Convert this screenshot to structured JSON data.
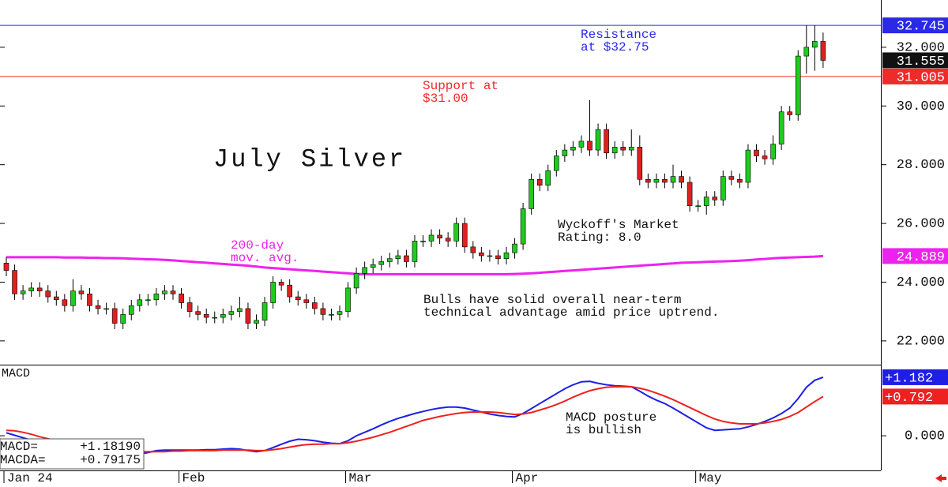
{
  "chart_data": [
    {
      "type": "candlestick",
      "title": "July Silver",
      "categories": [
        "Jan 24",
        null,
        null,
        null,
        null,
        null,
        null,
        null,
        null,
        null,
        null,
        null,
        null,
        null,
        null,
        null,
        null,
        null,
        null,
        null,
        null,
        "Feb",
        null,
        null,
        null,
        null,
        null,
        null,
        null,
        null,
        null,
        null,
        null,
        null,
        null,
        null,
        null,
        null,
        null,
        null,
        null,
        "Mar",
        null,
        null,
        null,
        null,
        null,
        null,
        null,
        null,
        null,
        null,
        null,
        null,
        null,
        null,
        null,
        null,
        null,
        null,
        null,
        "Apr",
        null,
        null,
        null,
        null,
        null,
        null,
        null,
        null,
        null,
        null,
        null,
        null,
        null,
        null,
        null,
        null,
        null,
        null,
        null,
        null,
        null,
        "May",
        null,
        null,
        null,
        null,
        null,
        null,
        null,
        null,
        null,
        null,
        null,
        null,
        null,
        null,
        null
      ],
      "open": [
        24.65,
        24.4,
        23.6,
        23.7,
        23.8,
        23.7,
        23.5,
        23.4,
        23.2,
        23.7,
        23.6,
        23.2,
        23.1,
        23.1,
        22.6,
        22.9,
        23.2,
        23.4,
        23.4,
        23.6,
        23.7,
        23.6,
        23.3,
        23.0,
        22.9,
        22.8,
        22.8,
        22.9,
        23.0,
        23.1,
        22.6,
        22.7,
        23.3,
        24.0,
        23.9,
        23.5,
        23.4,
        23.3,
        23.1,
        22.9,
        22.9,
        23.0,
        23.8,
        24.3,
        24.5,
        24.6,
        24.7,
        24.8,
        24.9,
        24.7,
        25.4,
        25.4,
        25.6,
        25.5,
        25.4,
        26.0,
        25.2,
        25.0,
        24.9,
        24.9,
        24.8,
        25.0,
        25.3,
        26.5,
        27.5,
        27.3,
        27.8,
        28.3,
        28.5,
        28.6,
        28.8,
        28.5,
        29.2,
        28.4,
        28.6,
        28.5,
        28.6,
        27.5,
        27.4,
        27.5,
        27.4,
        27.6,
        27.4,
        26.6,
        26.6,
        26.9,
        26.8,
        27.6,
        27.5,
        27.4,
        28.5,
        28.3,
        28.2,
        28.7,
        29.8,
        29.7,
        31.7,
        32.0,
        32.2
      ],
      "high": [
        24.85,
        24.6,
        23.9,
        24.0,
        24.0,
        23.9,
        23.7,
        23.6,
        24.1,
        23.9,
        23.8,
        23.4,
        23.3,
        23.3,
        23.1,
        23.4,
        23.6,
        23.6,
        23.8,
        23.9,
        23.9,
        23.8,
        23.5,
        23.2,
        23.1,
        23.0,
        23.1,
        23.2,
        23.5,
        23.3,
        22.9,
        23.5,
        24.2,
        24.1,
        24.1,
        23.7,
        23.6,
        23.5,
        23.3,
        23.1,
        23.2,
        24.0,
        24.5,
        24.7,
        24.8,
        24.9,
        25.0,
        25.1,
        25.1,
        25.6,
        25.6,
        25.8,
        25.8,
        25.7,
        26.2,
        26.2,
        25.4,
        25.2,
        25.1,
        25.1,
        25.2,
        25.5,
        26.7,
        27.7,
        27.7,
        28.0,
        28.5,
        28.7,
        28.8,
        29.0,
        30.2,
        29.4,
        29.4,
        28.8,
        28.8,
        29.2,
        29.0,
        27.7,
        27.7,
        27.7,
        28.0,
        27.8,
        27.6,
        26.8,
        27.1,
        27.1,
        27.8,
        27.8,
        27.7,
        28.7,
        28.7,
        28.5,
        29.0,
        30.0,
        30.0,
        31.9,
        32.75,
        32.75,
        32.5
      ],
      "low": [
        24.2,
        23.4,
        23.4,
        23.5,
        23.5,
        23.3,
        23.2,
        23.0,
        23.0,
        23.4,
        23.0,
        22.9,
        22.9,
        22.4,
        22.4,
        22.7,
        23.0,
        23.2,
        23.2,
        23.4,
        23.4,
        23.1,
        22.8,
        22.7,
        22.6,
        22.6,
        22.6,
        22.7,
        22.8,
        22.4,
        22.4,
        22.5,
        23.1,
        23.7,
        23.3,
        23.2,
        23.1,
        22.9,
        22.7,
        22.7,
        22.7,
        22.8,
        23.6,
        24.1,
        24.3,
        24.4,
        24.5,
        24.6,
        24.5,
        24.5,
        25.2,
        25.2,
        25.3,
        25.2,
        25.2,
        25.0,
        24.8,
        24.7,
        24.7,
        24.6,
        24.6,
        24.8,
        25.1,
        26.3,
        27.1,
        27.1,
        27.6,
        28.1,
        28.3,
        28.4,
        28.3,
        28.3,
        28.2,
        28.2,
        28.3,
        28.3,
        27.3,
        27.2,
        27.2,
        27.2,
        27.2,
        27.2,
        26.4,
        26.4,
        26.3,
        26.6,
        26.6,
        27.3,
        27.2,
        27.2,
        28.1,
        28.0,
        28.0,
        28.5,
        29.5,
        29.5,
        31.1,
        31.2,
        31.3
      ],
      "close": [
        24.4,
        23.6,
        23.7,
        23.8,
        23.7,
        23.5,
        23.4,
        23.2,
        23.7,
        23.6,
        23.2,
        23.1,
        23.1,
        22.6,
        22.9,
        23.2,
        23.4,
        23.4,
        23.6,
        23.7,
        23.6,
        23.3,
        23.0,
        22.9,
        22.8,
        22.8,
        22.9,
        23.0,
        23.1,
        22.6,
        22.7,
        23.3,
        24.0,
        23.9,
        23.5,
        23.4,
        23.3,
        23.1,
        22.9,
        22.9,
        23.0,
        23.8,
        24.3,
        24.5,
        24.6,
        24.7,
        24.8,
        24.9,
        24.7,
        25.4,
        25.4,
        25.6,
        25.5,
        25.4,
        26.0,
        25.2,
        25.0,
        24.9,
        24.9,
        24.8,
        25.0,
        25.3,
        26.5,
        27.5,
        27.3,
        27.8,
        28.3,
        28.5,
        28.6,
        28.8,
        28.5,
        29.2,
        28.4,
        28.6,
        28.5,
        28.6,
        27.5,
        27.4,
        27.5,
        27.4,
        27.6,
        27.4,
        26.6,
        26.6,
        26.9,
        26.8,
        27.6,
        27.5,
        27.4,
        28.5,
        28.3,
        28.2,
        28.7,
        29.8,
        29.7,
        31.7,
        32.0,
        32.2,
        31.555
      ],
      "up_color": "#1ecb1e",
      "down_color": "#e02020",
      "overlays": [
        {
          "color": "#ee22ee",
          "values": [
            24.85,
            24.85,
            24.85,
            24.85,
            24.85,
            24.85,
            24.85,
            24.84,
            24.84,
            24.84,
            24.83,
            24.83,
            24.82,
            24.82,
            24.81,
            24.8,
            24.79,
            24.78,
            24.77,
            24.76,
            24.74,
            24.72,
            24.7,
            24.68,
            24.66,
            24.64,
            24.62,
            24.6,
            24.58,
            24.56,
            24.53,
            24.5,
            24.48,
            24.46,
            24.44,
            24.42,
            24.4,
            24.38,
            24.36,
            24.34,
            24.32,
            24.3,
            24.28,
            24.27,
            24.27,
            24.27,
            24.27,
            24.27,
            24.27,
            24.27,
            24.27,
            24.27,
            24.27,
            24.27,
            24.27,
            24.27,
            24.27,
            24.27,
            24.27,
            24.27,
            24.27,
            24.28,
            24.29,
            24.3,
            24.32,
            24.34,
            24.36,
            24.38,
            24.4,
            24.42,
            24.44,
            24.46,
            24.48,
            24.5,
            24.52,
            24.54,
            24.56,
            24.58,
            24.6,
            24.62,
            24.64,
            24.66,
            24.67,
            24.68,
            24.69,
            24.7,
            24.71,
            24.72,
            24.73,
            24.75,
            24.77,
            24.79,
            24.81,
            24.83,
            24.84,
            24.85,
            24.86,
            24.87,
            24.889
          ]
        }
      ],
      "markers": [
        {
          "value": 32.745,
          "color": "#2a2ae6",
          "line": true
        },
        {
          "value": 31.555,
          "color": "#111111",
          "line": false
        },
        {
          "value": 31.005,
          "color": "#ee2a2a",
          "line": true
        },
        {
          "value": 24.889,
          "color": "#ee22ee",
          "line": false
        }
      ],
      "annotations": [
        {
          "text": [
            "Resistance",
            "at $32.75"
          ],
          "color": "#2a2ae6"
        },
        {
          "text": [
            "Support at",
            "$31.00"
          ],
          "color": "#ee2a2a"
        },
        {
          "text": [
            "200-day",
            "mov. avg."
          ],
          "color": "#ee22ee"
        },
        {
          "text": [
            "Wyckoff's Market",
            "Rating: 8.0"
          ],
          "color": "#111111"
        },
        {
          "text": [
            "Bulls have solid overall near-term",
            "technical advantage amid price uptrend."
          ],
          "color": "#111111"
        }
      ],
      "ylim": [
        21.19,
        33.61
      ],
      "yticks": [
        {
          "value": 22,
          "label": "22.000"
        },
        {
          "value": 24,
          "label": "24.000"
        },
        {
          "value": 26,
          "label": "26.000"
        },
        {
          "value": 28,
          "label": "28.000"
        },
        {
          "value": 30,
          "label": "30.000"
        },
        {
          "value": 32,
          "label": "32.000"
        }
      ]
    },
    {
      "type": "line",
      "title": "MACD",
      "series": [
        {
          "name": "MACD=",
          "color": "#1e1ee6",
          "values": [
            0.06,
            0.01,
            -0.04,
            -0.09,
            -0.14,
            -0.2,
            -0.24,
            -0.28,
            -0.32,
            -0.37,
            -0.38,
            -0.39,
            -0.4,
            -0.42,
            -0.42,
            -0.4,
            -0.37,
            -0.34,
            -0.3,
            -0.29,
            -0.29,
            -0.29,
            -0.29,
            -0.29,
            -0.28,
            -0.28,
            -0.27,
            -0.26,
            -0.27,
            -0.3,
            -0.32,
            -0.3,
            -0.24,
            -0.17,
            -0.11,
            -0.07,
            -0.08,
            -0.1,
            -0.13,
            -0.15,
            -0.16,
            -0.1,
            0.0,
            0.07,
            0.14,
            0.22,
            0.29,
            0.35,
            0.4,
            0.45,
            0.49,
            0.53,
            0.56,
            0.58,
            0.58,
            0.56,
            0.52,
            0.48,
            0.44,
            0.41,
            0.39,
            0.38,
            0.45,
            0.55,
            0.65,
            0.75,
            0.85,
            0.95,
            1.03,
            1.09,
            1.1,
            1.06,
            1.03,
            1.01,
            1.0,
            0.99,
            0.9,
            0.8,
            0.72,
            0.65,
            0.56,
            0.46,
            0.36,
            0.26,
            0.16,
            0.11,
            0.12,
            0.13,
            0.14,
            0.18,
            0.23,
            0.29,
            0.36,
            0.45,
            0.56,
            0.75,
            0.98,
            1.12,
            1.1819
          ],
          "readout": "+1.18190",
          "badge": {
            "value": 1.182,
            "label": "+1.182"
          }
        },
        {
          "name": "MACDA=",
          "color": "#ee2020",
          "values": [
            0.11,
            0.1,
            0.07,
            0.03,
            -0.02,
            -0.06,
            -0.1,
            -0.14,
            -0.18,
            -0.22,
            -0.25,
            -0.27,
            -0.29,
            -0.3,
            -0.31,
            -0.32,
            -0.32,
            -0.32,
            -0.32,
            -0.32,
            -0.31,
            -0.31,
            -0.3,
            -0.3,
            -0.3,
            -0.3,
            -0.29,
            -0.29,
            -0.29,
            -0.29,
            -0.3,
            -0.3,
            -0.28,
            -0.26,
            -0.23,
            -0.2,
            -0.18,
            -0.17,
            -0.17,
            -0.16,
            -0.16,
            -0.14,
            -0.11,
            -0.07,
            -0.03,
            0.02,
            0.07,
            0.13,
            0.19,
            0.25,
            0.31,
            0.35,
            0.39,
            0.42,
            0.45,
            0.47,
            0.48,
            0.48,
            0.48,
            0.47,
            0.45,
            0.43,
            0.44,
            0.47,
            0.52,
            0.57,
            0.63,
            0.7,
            0.78,
            0.85,
            0.91,
            0.95,
            0.98,
            0.99,
            0.99,
            0.99,
            0.96,
            0.92,
            0.86,
            0.8,
            0.73,
            0.65,
            0.57,
            0.49,
            0.41,
            0.34,
            0.29,
            0.26,
            0.24,
            0.24,
            0.24,
            0.26,
            0.29,
            0.33,
            0.39,
            0.47,
            0.58,
            0.69,
            0.79175
          ],
          "readout": "+0.79175",
          "badge": {
            "value": 0.792,
            "label": "+0.792"
          }
        }
      ],
      "annotations": [
        {
          "text": [
            "MACD posture",
            "is bullish"
          ],
          "color": "#111111"
        }
      ],
      "ylim": [
        -0.7,
        1.42
      ],
      "yticks": [
        {
          "value": 0,
          "label": "0.000"
        }
      ]
    }
  ]
}
